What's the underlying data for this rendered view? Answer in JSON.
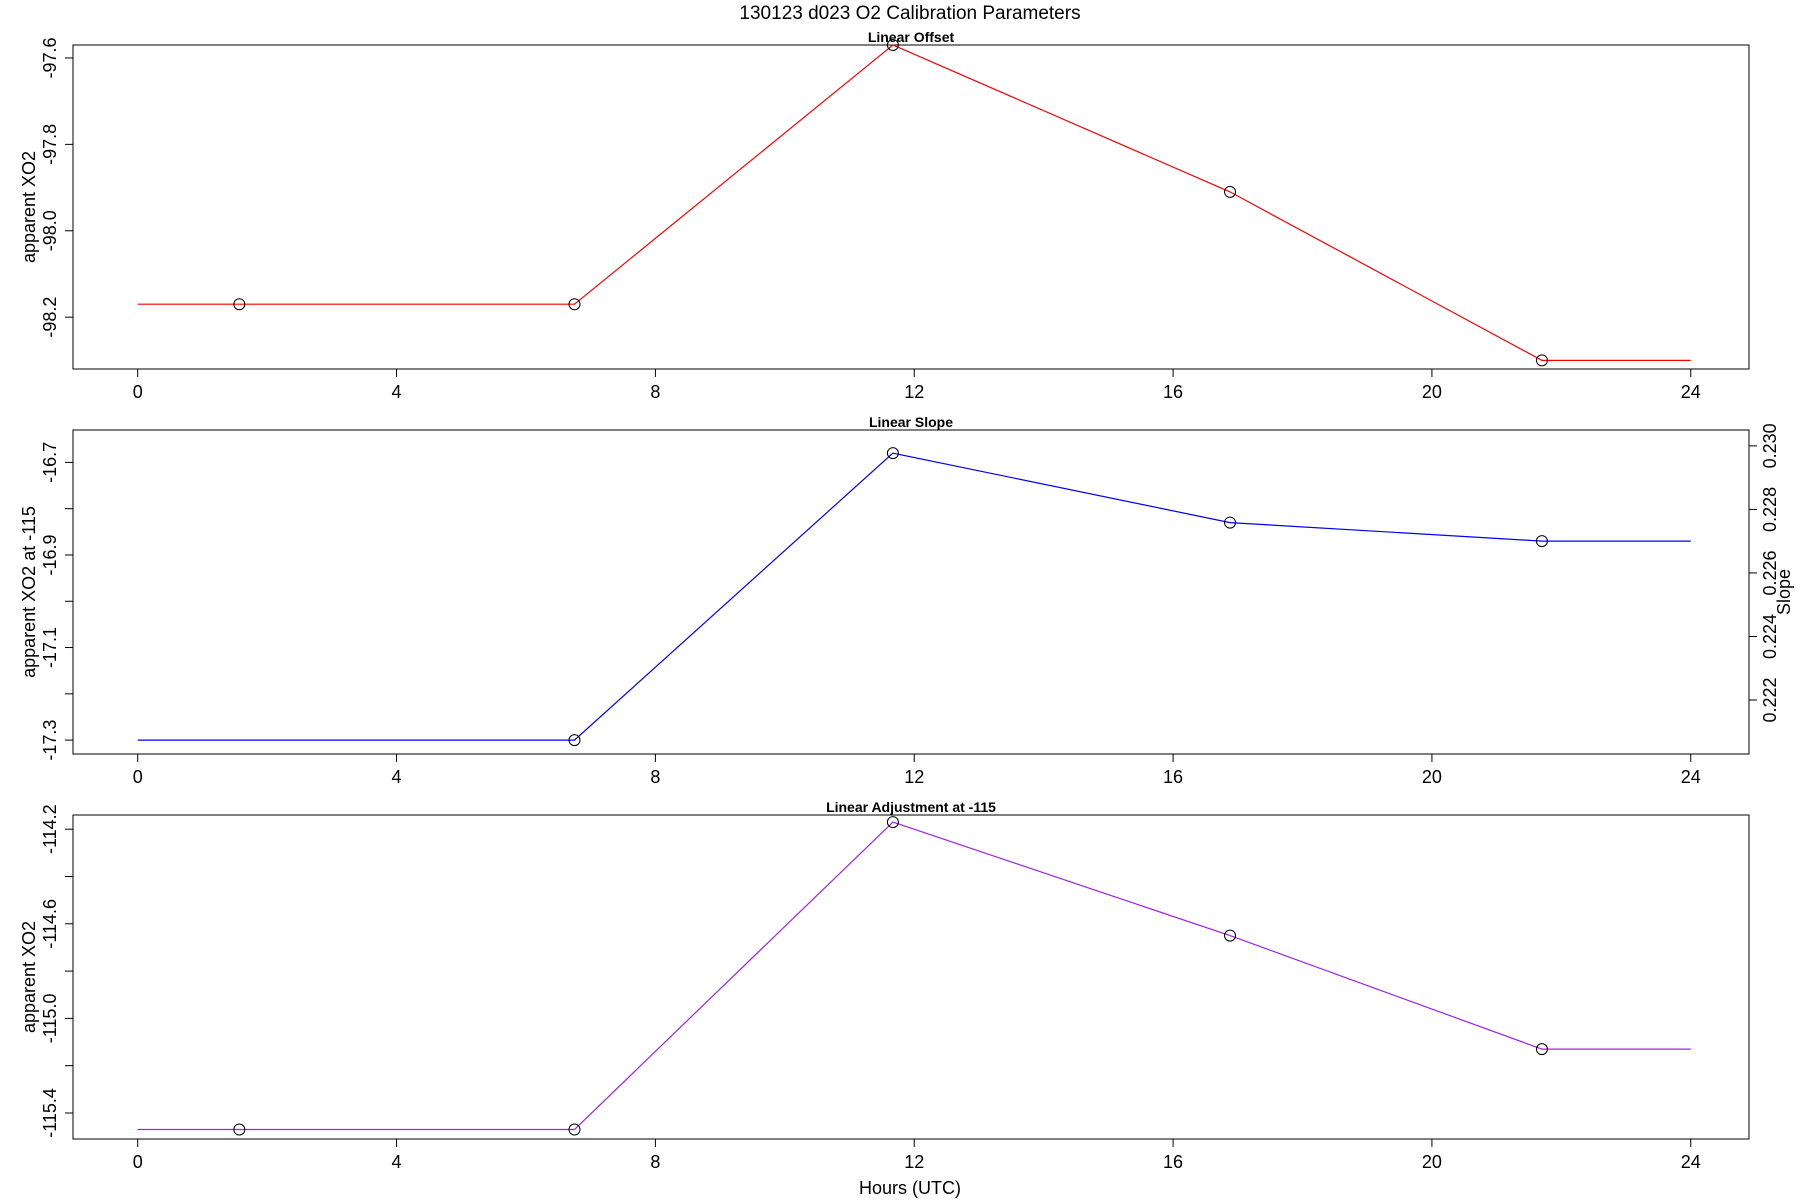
{
  "figure": {
    "title": "130123   d023   O2 Calibration Parameters",
    "xlabel": "Hours (UTC)"
  },
  "chart_data": [
    {
      "type": "line",
      "title": "Linear Offset",
      "xlabel": "",
      "ylabel": "apparent XO2",
      "xlim": [
        -1,
        24.9
      ],
      "xticks": [
        0,
        4,
        8,
        12,
        16,
        20,
        24
      ],
      "ylim": [
        -98.32,
        -97.57
      ],
      "yticks": [
        -98.2,
        -98.0,
        -97.8,
        -97.6
      ],
      "ytick_labels": [
        "-98.2",
        "-98.0",
        "-97.8",
        "-97.6"
      ],
      "color": "#ff0000",
      "line": {
        "x": [
          0,
          1.57,
          6.75,
          11.67,
          16.88,
          21.7,
          24
        ],
        "y": [
          -98.17,
          -98.17,
          -98.17,
          -97.57,
          -97.91,
          -98.3,
          -98.3
        ]
      },
      "points": {
        "x": [
          1.57,
          6.75,
          11.67,
          16.88,
          21.7
        ],
        "y": [
          -98.17,
          -98.17,
          -97.57,
          -97.91,
          -98.3
        ]
      }
    },
    {
      "type": "line",
      "title": "Linear Slope",
      "xlabel": "",
      "ylabel": "apparent XO2 at -115",
      "y2label": "Slope",
      "xlim": [
        -1,
        24.9
      ],
      "xticks": [
        0,
        4,
        8,
        12,
        16,
        20,
        24
      ],
      "ylim": [
        -17.33,
        -16.63
      ],
      "yticks": [
        -17.3,
        -17.2,
        -17.1,
        -17.0,
        -16.9,
        -16.8,
        -16.7
      ],
      "ytick_labels": [
        "-17.3",
        "",
        "-17.1",
        "",
        "-16.9",
        "",
        "-16.7"
      ],
      "y2lim": [
        0.2203,
        0.2305
      ],
      "y2ticks": [
        0.222,
        0.224,
        0.226,
        0.228,
        0.23
      ],
      "y2tick_labels": [
        "0.222",
        "0.224",
        "0.226",
        "0.228",
        "0.230"
      ],
      "color": "#0000ff",
      "line": {
        "x": [
          0,
          6.75,
          11.67,
          16.88,
          21.7,
          24
        ],
        "y": [
          -17.3,
          -17.3,
          -16.68,
          -16.83,
          -16.87,
          -16.87
        ]
      },
      "points": {
        "x": [
          6.75,
          11.67,
          16.88,
          21.7
        ],
        "y": [
          -17.3,
          -16.68,
          -16.83,
          -16.87
        ]
      }
    },
    {
      "type": "line",
      "title": "Linear Adjustment at -115",
      "xlabel": "Hours (UTC)",
      "ylabel": "apparent XO2",
      "xlim": [
        -1,
        24.9
      ],
      "xticks": [
        0,
        4,
        8,
        12,
        16,
        20,
        24
      ],
      "ylim": [
        -115.51,
        -114.14
      ],
      "yticks": [
        -115.4,
        -115.2,
        -115.0,
        -114.8,
        -114.6,
        -114.4,
        -114.2
      ],
      "ytick_labels": [
        "-115.4",
        "",
        "-115.0",
        "",
        "-114.6",
        "",
        "-114.2"
      ],
      "color": "#a020f0",
      "line": {
        "x": [
          0,
          1.57,
          6.75,
          11.67,
          16.88,
          21.7,
          24
        ],
        "y": [
          -115.47,
          -115.47,
          -115.47,
          -114.17,
          -114.65,
          -115.13,
          -115.13
        ]
      },
      "points": {
        "x": [
          1.57,
          6.75,
          11.67,
          16.88,
          21.7
        ],
        "y": [
          -115.47,
          -115.47,
          -114.17,
          -114.65,
          -115.13
        ]
      }
    }
  ]
}
